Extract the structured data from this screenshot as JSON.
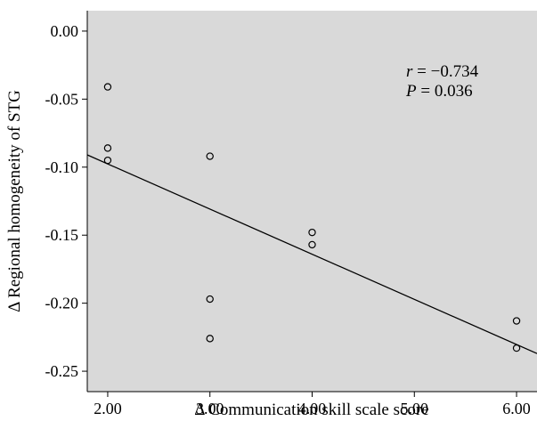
{
  "chart_data": {
    "type": "scatter",
    "title": "",
    "xlabel": "Δ Communication skill scale score",
    "ylabel": "Δ Regional homogeneity of STG",
    "xlim": [
      1.8,
      6.2
    ],
    "ylim": [
      -0.265,
      0.015
    ],
    "x_ticks": [
      2.0,
      3.0,
      4.0,
      5.0,
      6.0
    ],
    "x_tick_labels": [
      "2.00",
      "3.00",
      "4.00",
      "5.00",
      "6.00"
    ],
    "y_ticks": [
      0.0,
      -0.05,
      -0.1,
      -0.15,
      -0.2,
      -0.25
    ],
    "y_tick_labels": [
      "0.00",
      "-0.05",
      "-0.10",
      "-0.15",
      "-0.20",
      "-0.25"
    ],
    "grid": false,
    "background_color": "#d9d9d9",
    "series": [
      {
        "points": [
          {
            "x": 2.0,
            "y": -0.041
          },
          {
            "x": 2.0,
            "y": -0.086
          },
          {
            "x": 2.0,
            "y": -0.095
          },
          {
            "x": 3.0,
            "y": -0.092
          },
          {
            "x": 3.0,
            "y": -0.197
          },
          {
            "x": 3.0,
            "y": -0.226
          },
          {
            "x": 4.0,
            "y": -0.148
          },
          {
            "x": 4.0,
            "y": -0.157
          },
          {
            "x": 6.0,
            "y": -0.213
          },
          {
            "x": 6.0,
            "y": -0.233
          }
        ]
      }
    ],
    "fit_line": {
      "x0": 1.8,
      "y0": -0.091,
      "x1": 6.2,
      "y1": -0.237
    },
    "annotations": {
      "r_symbol": "r",
      "r_text": " = −0.734",
      "p_symbol": "P",
      "p_text": " = 0.036"
    }
  }
}
